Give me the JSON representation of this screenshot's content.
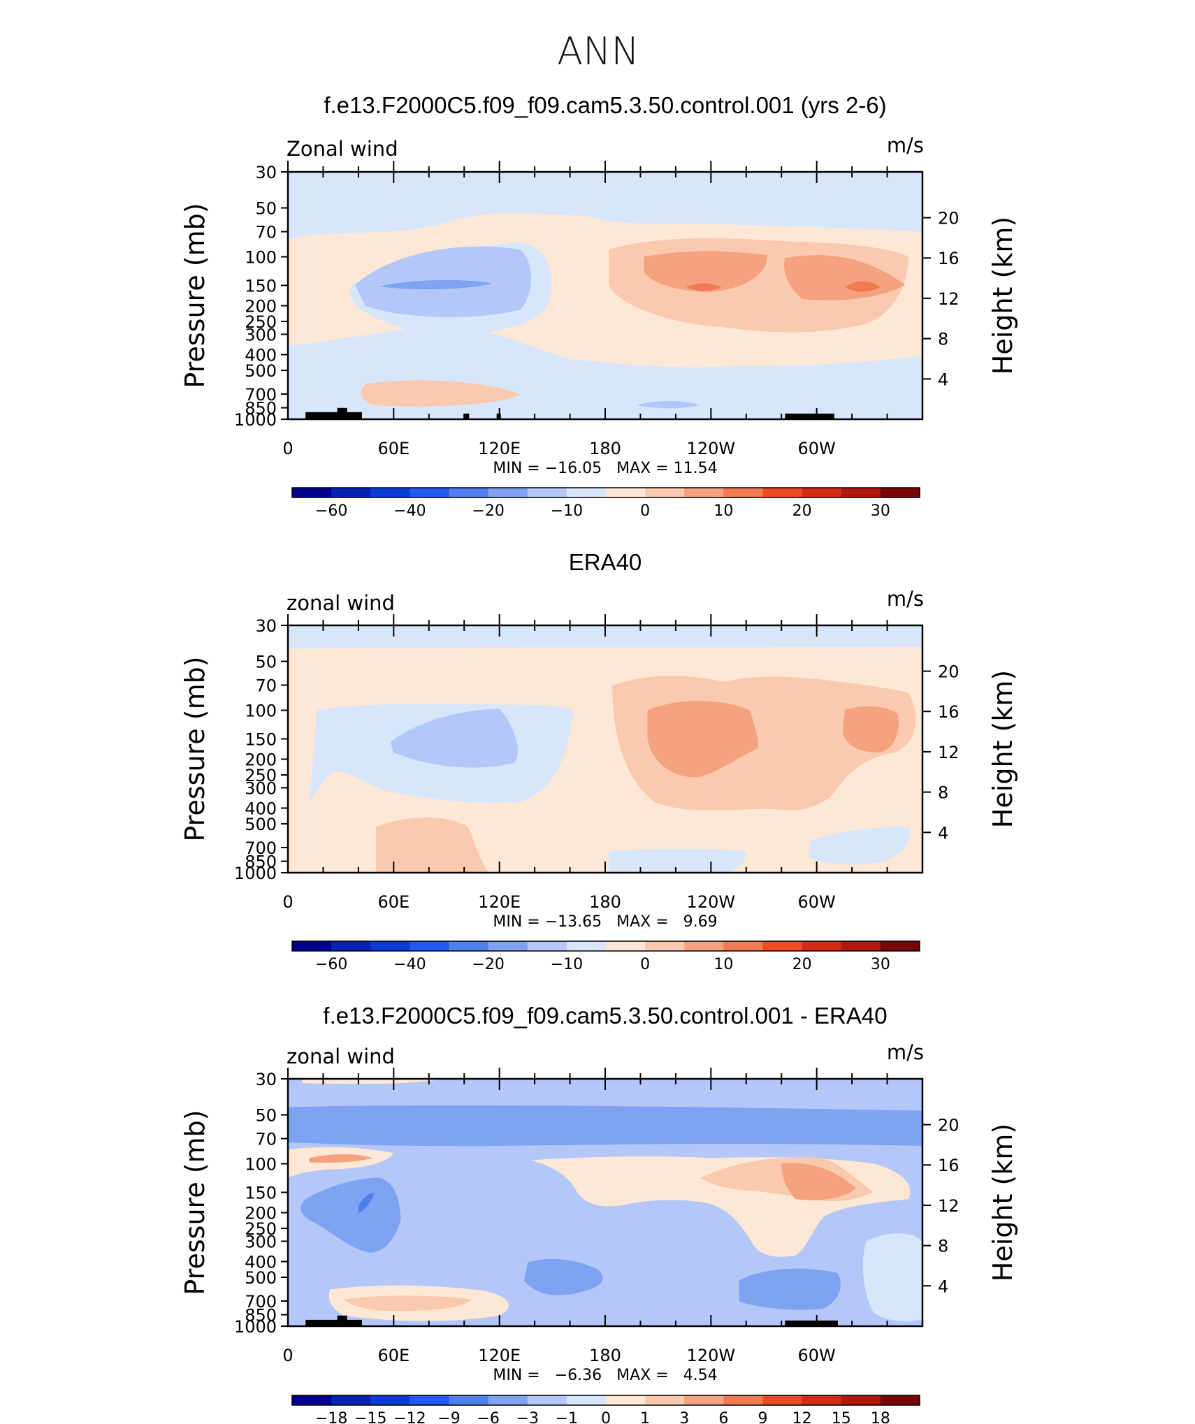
{
  "figure": {
    "title": "ANN",
    "colors": {
      "frame": "#000000",
      "topography": "#000000"
    }
  },
  "chart_data": [
    {
      "type": "heatmap",
      "title": "f.e13.F2000C5.f09_f09.cam5.3.50.control.001 (yrs 2-6)",
      "variable": "Zonal wind",
      "units": "m/s",
      "ylabel": "Pressure (mb)",
      "ylabel_right": "Height (km)",
      "pressure_ticks": [
        "30",
        "50",
        "70",
        "100",
        "150",
        "200",
        "250",
        "300",
        "400",
        "500",
        "700",
        "850",
        "1000"
      ],
      "height_ticks": [
        "20",
        "16",
        "12",
        "8",
        "4"
      ],
      "x_tick_labels": [
        "0",
        "60E",
        "120E",
        "180",
        "120W",
        "60W"
      ],
      "min_max_text": "MIN = −16.05   MAX = 11.54",
      "min": -16.05,
      "max": 11.54,
      "colorbar": {
        "labels": [
          "−60",
          "−40",
          "−20",
          "−10",
          "0",
          "10",
          "20",
          "30"
        ],
        "colors": [
          "#00008c",
          "#0523b3",
          "#0c3ad6",
          "#2459f0",
          "#4f7fee",
          "#7ea3f2",
          "#b3c8f9",
          "#d8e6fb",
          "#fde8d6",
          "#fbc9ae",
          "#f5a280",
          "#f07a52",
          "#ec4c24",
          "#d32b13",
          "#b0180c",
          "#7a0505"
        ]
      }
    },
    {
      "type": "heatmap",
      "title": "ERA40",
      "variable": "zonal wind",
      "units": "m/s",
      "ylabel": "Pressure (mb)",
      "ylabel_right": "Height (km)",
      "pressure_ticks": [
        "30",
        "50",
        "70",
        "100",
        "150",
        "200",
        "250",
        "300",
        "400",
        "500",
        "700",
        "850",
        "1000"
      ],
      "height_ticks": [
        "20",
        "16",
        "12",
        "8",
        "4"
      ],
      "x_tick_labels": [
        "0",
        "60E",
        "120E",
        "180",
        "120W",
        "60W"
      ],
      "min_max_text": "MIN = −13.65   MAX =   9.69",
      "min": -13.65,
      "max": 9.69,
      "colorbar": {
        "labels": [
          "−60",
          "−40",
          "−20",
          "−10",
          "0",
          "10",
          "20",
          "30"
        ],
        "colors": [
          "#00008c",
          "#0523b3",
          "#0c3ad6",
          "#2459f0",
          "#4f7fee",
          "#7ea3f2",
          "#b3c8f9",
          "#d8e6fb",
          "#fde8d6",
          "#fbc9ae",
          "#f5a280",
          "#f07a52",
          "#ec4c24",
          "#d32b13",
          "#b0180c",
          "#7a0505"
        ]
      }
    },
    {
      "type": "heatmap",
      "title": "f.e13.F2000C5.f09_f09.cam5.3.50.control.001 - ERA40",
      "variable": "zonal wind",
      "units": "m/s",
      "ylabel": "Pressure (mb)",
      "ylabel_right": "Height (km)",
      "pressure_ticks": [
        "30",
        "50",
        "70",
        "100",
        "150",
        "200",
        "250",
        "300",
        "400",
        "500",
        "700",
        "850",
        "1000"
      ],
      "height_ticks": [
        "20",
        "16",
        "12",
        "8",
        "4"
      ],
      "x_tick_labels": [
        "0",
        "60E",
        "120E",
        "180",
        "120W",
        "60W"
      ],
      "min_max_text": "MIN =   −6.36   MAX =   4.54",
      "min": -6.36,
      "max": 4.54,
      "colorbar": {
        "labels": [
          "−18",
          "−15",
          "−12",
          "−9",
          "−6",
          "−3",
          "−1",
          "0",
          "1",
          "3",
          "6",
          "9",
          "12",
          "15",
          "18"
        ],
        "colors": [
          "#00008c",
          "#0523b3",
          "#0c3ad6",
          "#2459f0",
          "#4f7fee",
          "#7ea3f2",
          "#b3c8f9",
          "#d8e6fb",
          "#fde8d6",
          "#fbc9ae",
          "#f5a280",
          "#f07a52",
          "#ec4c24",
          "#d32b13",
          "#b0180c",
          "#7a0505"
        ]
      }
    }
  ]
}
